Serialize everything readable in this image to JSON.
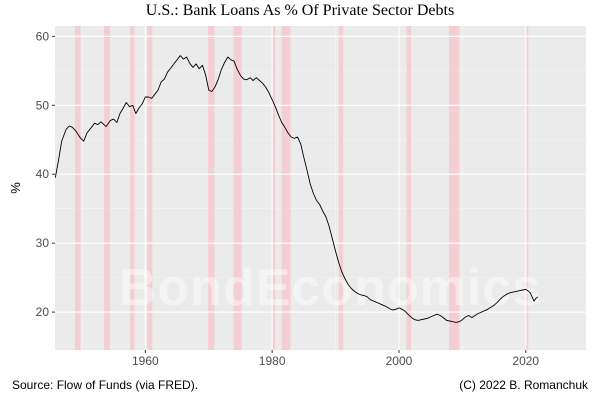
{
  "chart_data": {
    "type": "line",
    "title": "U.S.: Bank Loans As % Of Private Sector Debts",
    "xlabel": "",
    "ylabel": "%",
    "xlim": [
      1945.75,
      2029.5
    ],
    "ylim": [
      14.5,
      61.5
    ],
    "x_ticks": [
      1960,
      1980,
      2000,
      2020
    ],
    "y_ticks": [
      20,
      30,
      40,
      50,
      60
    ],
    "grid": true,
    "watermark": "BondEconomics",
    "shading_color": "#f6c9cf",
    "background_color": "#ebebeb",
    "line_color": "#000000",
    "recessions": [
      [
        1948.9,
        1949.8
      ],
      [
        1953.5,
        1954.4
      ],
      [
        1957.6,
        1958.3
      ],
      [
        1960.3,
        1961.1
      ],
      [
        1969.9,
        1970.9
      ],
      [
        1973.9,
        1975.2
      ],
      [
        1980.0,
        1980.5
      ],
      [
        1981.5,
        1982.9
      ],
      [
        1990.5,
        1991.2
      ],
      [
        2001.2,
        2001.9
      ],
      [
        2007.9,
        2009.5
      ],
      [
        2020.1,
        2020.4
      ]
    ],
    "series": [
      {
        "values": [
          [
            1945.8,
            39.5
          ],
          [
            1946.3,
            42.0
          ],
          [
            1946.8,
            44.8
          ],
          [
            1947.5,
            46.5
          ],
          [
            1948.0,
            47.0
          ],
          [
            1948.5,
            46.8
          ],
          [
            1949.0,
            46.3
          ],
          [
            1949.8,
            45.2
          ],
          [
            1950.3,
            44.8
          ],
          [
            1950.8,
            46.0
          ],
          [
            1951.5,
            46.8
          ],
          [
            1952.0,
            47.4
          ],
          [
            1952.5,
            47.2
          ],
          [
            1953.0,
            47.6
          ],
          [
            1953.8,
            46.9
          ],
          [
            1954.5,
            47.8
          ],
          [
            1955.0,
            48.0
          ],
          [
            1955.5,
            47.5
          ],
          [
            1956.0,
            48.8
          ],
          [
            1956.5,
            49.6
          ],
          [
            1957.0,
            50.4
          ],
          [
            1957.5,
            49.8
          ],
          [
            1958.0,
            50.0
          ],
          [
            1958.5,
            48.8
          ],
          [
            1959.0,
            49.6
          ],
          [
            1959.5,
            50.2
          ],
          [
            1960.0,
            51.2
          ],
          [
            1960.5,
            51.2
          ],
          [
            1961.0,
            51.0
          ],
          [
            1961.5,
            51.6
          ],
          [
            1962.0,
            52.2
          ],
          [
            1962.5,
            53.4
          ],
          [
            1963.0,
            53.8
          ],
          [
            1963.5,
            54.8
          ],
          [
            1964.0,
            55.4
          ],
          [
            1964.5,
            56.0
          ],
          [
            1965.0,
            56.6
          ],
          [
            1965.5,
            57.2
          ],
          [
            1966.0,
            56.7
          ],
          [
            1966.5,
            57.0
          ],
          [
            1967.0,
            56.1
          ],
          [
            1967.5,
            55.5
          ],
          [
            1968.0,
            56.0
          ],
          [
            1968.5,
            55.3
          ],
          [
            1969.0,
            55.8
          ],
          [
            1969.5,
            54.4
          ],
          [
            1970.0,
            52.2
          ],
          [
            1970.5,
            52.0
          ],
          [
            1971.0,
            52.7
          ],
          [
            1971.5,
            53.8
          ],
          [
            1972.0,
            55.2
          ],
          [
            1972.5,
            56.2
          ],
          [
            1973.0,
            57.0
          ],
          [
            1973.5,
            56.6
          ],
          [
            1974.0,
            56.4
          ],
          [
            1974.5,
            55.2
          ],
          [
            1975.0,
            54.3
          ],
          [
            1975.5,
            53.8
          ],
          [
            1976.0,
            53.7
          ],
          [
            1976.5,
            54.0
          ],
          [
            1977.0,
            53.6
          ],
          [
            1977.5,
            54.0
          ],
          [
            1978.0,
            53.6
          ],
          [
            1978.5,
            53.2
          ],
          [
            1979.0,
            52.6
          ],
          [
            1979.5,
            51.8
          ],
          [
            1980.0,
            50.8
          ],
          [
            1980.5,
            49.8
          ],
          [
            1981.0,
            48.6
          ],
          [
            1981.5,
            47.5
          ],
          [
            1982.0,
            46.8
          ],
          [
            1982.5,
            46.0
          ],
          [
            1983.0,
            45.4
          ],
          [
            1983.5,
            45.2
          ],
          [
            1984.0,
            45.4
          ],
          [
            1984.5,
            44.4
          ],
          [
            1985.0,
            42.4
          ],
          [
            1985.5,
            40.6
          ],
          [
            1986.0,
            38.6
          ],
          [
            1986.5,
            37.2
          ],
          [
            1987.0,
            36.2
          ],
          [
            1987.5,
            35.6
          ],
          [
            1988.0,
            34.6
          ],
          [
            1988.5,
            33.8
          ],
          [
            1989.0,
            32.4
          ],
          [
            1989.5,
            30.6
          ],
          [
            1990.0,
            28.8
          ],
          [
            1990.5,
            27.2
          ],
          [
            1991.0,
            25.8
          ],
          [
            1991.5,
            24.8
          ],
          [
            1992.0,
            24.0
          ],
          [
            1992.5,
            23.4
          ],
          [
            1993.0,
            23.0
          ],
          [
            1993.5,
            22.7
          ],
          [
            1994.0,
            22.5
          ],
          [
            1994.5,
            22.4
          ],
          [
            1995.0,
            22.2
          ],
          [
            1995.5,
            21.8
          ],
          [
            1996.0,
            21.6
          ],
          [
            1996.5,
            21.4
          ],
          [
            1997.0,
            21.2
          ],
          [
            1997.5,
            21.0
          ],
          [
            1998.0,
            20.8
          ],
          [
            1998.5,
            20.5
          ],
          [
            1999.0,
            20.3
          ],
          [
            1999.5,
            20.4
          ],
          [
            2000.0,
            20.6
          ],
          [
            2000.5,
            20.4
          ],
          [
            2001.0,
            20.1
          ],
          [
            2001.5,
            19.6
          ],
          [
            2002.0,
            19.2
          ],
          [
            2002.5,
            18.9
          ],
          [
            2003.0,
            18.8
          ],
          [
            2003.5,
            18.9
          ],
          [
            2004.0,
            19.0
          ],
          [
            2004.5,
            19.1
          ],
          [
            2005.0,
            19.3
          ],
          [
            2005.5,
            19.5
          ],
          [
            2006.0,
            19.7
          ],
          [
            2006.5,
            19.5
          ],
          [
            2007.0,
            19.2
          ],
          [
            2007.5,
            18.8
          ],
          [
            2008.0,
            18.7
          ],
          [
            2008.5,
            18.6
          ],
          [
            2009.0,
            18.5
          ],
          [
            2009.5,
            18.6
          ],
          [
            2010.0,
            18.9
          ],
          [
            2010.5,
            19.3
          ],
          [
            2011.0,
            19.5
          ],
          [
            2011.5,
            19.2
          ],
          [
            2012.0,
            19.5
          ],
          [
            2012.5,
            19.8
          ],
          [
            2013.0,
            20.0
          ],
          [
            2013.5,
            20.2
          ],
          [
            2014.0,
            20.4
          ],
          [
            2014.5,
            20.7
          ],
          [
            2015.0,
            21.0
          ],
          [
            2015.5,
            21.4
          ],
          [
            2016.0,
            21.9
          ],
          [
            2016.5,
            22.3
          ],
          [
            2017.0,
            22.6
          ],
          [
            2017.5,
            22.8
          ],
          [
            2018.0,
            22.9
          ],
          [
            2018.5,
            23.0
          ],
          [
            2019.0,
            23.1
          ],
          [
            2019.5,
            23.2
          ],
          [
            2020.0,
            23.3
          ],
          [
            2020.3,
            23.1
          ],
          [
            2020.7,
            22.8
          ],
          [
            2021.0,
            22.2
          ],
          [
            2021.3,
            21.6
          ],
          [
            2021.6,
            22.0
          ],
          [
            2021.9,
            22.2
          ]
        ]
      }
    ]
  },
  "footer": {
    "source": "Source: Flow of Funds (via FRED).",
    "credit": "(C) 2022 B. Romanchuk"
  }
}
